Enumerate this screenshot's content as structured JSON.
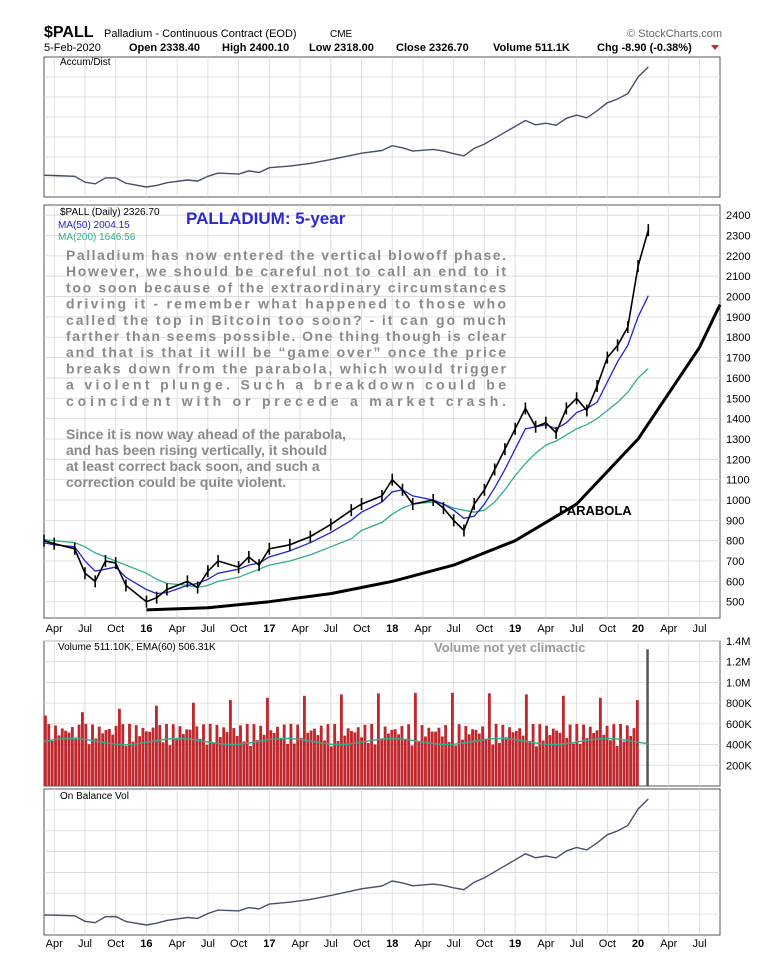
{
  "header": {
    "symbol": "$PALL",
    "description": "Palladium - Continuous Contract (EOD)",
    "exchange": "CME",
    "source": "© StockCharts.com",
    "date": "5-Feb-2020",
    "open": "Open 2338.40",
    "high": "High 2400.10",
    "low": "Low 2318.00",
    "close": "Close 2326.70",
    "volume": "Volume 511.1K",
    "chg": "Chg -8.90 (-0.38%)"
  },
  "panels": {
    "accum": "Accum/Dist",
    "price_legend": [
      "$PALL (Daily) 2326.70",
      "MA(50) 2004.15",
      "MA(200) 1646.56"
    ],
    "volume_legend": "Volume 511.10K, EMA(60) 506.31K",
    "obv": "On Balance Vol"
  },
  "annotations": {
    "title": "PALLADIUM: 5-year",
    "para1": [
      "Palladium has now entered the vertical blowoff phase.",
      "However, we should be careful not to call an end to it",
      "too soon because of the extraordinary circumstances",
      "driving it - remember what happened to those who",
      "called the top in Bitcoin too soon? - it can go much",
      "farther than seems possible. One thing though is clear",
      "and that is that it will be “game over” once the price",
      "breaks down from the parabola, which would trigger",
      "a violent plunge. Such a breakdown could be",
      "coincident with or precede a market crash."
    ],
    "para2": [
      "Since it is now way ahead of the parabola,",
      "and has been rising vertically, it should",
      "at least correct back soon, and such a",
      "correction could be quite violent."
    ],
    "parabola": "PARABOLA",
    "volume_note": "Volume not yet climactic"
  },
  "colors": {
    "price": "#000000",
    "ma50": "#2222cc",
    "ma200": "#2fae8f",
    "volume_bar": "#c0282d",
    "ema60": "#2fae8f",
    "grid": "#d8d8d8",
    "annotation_title": "#2a2ad0",
    "annotation_text": "#8a8a8a"
  },
  "chart_data": {
    "type": "line",
    "x_tick_labels": [
      "Apr",
      "Jul",
      "Oct",
      "16",
      "Apr",
      "Jul",
      "Oct",
      "17",
      "Apr",
      "Jul",
      "Oct",
      "18",
      "Apr",
      "Jul",
      "Oct",
      "19",
      "Apr",
      "Jul",
      "Oct",
      "20",
      "Apr",
      "Jul"
    ],
    "price_axis": {
      "ticks": [
        500,
        600,
        700,
        800,
        900,
        1000,
        1100,
        1200,
        1300,
        1400,
        1500,
        1600,
        1700,
        1800,
        1900,
        2000,
        2100,
        2200,
        2300,
        2400
      ],
      "ylim": [
        420,
        2450
      ]
    },
    "volume_axis": {
      "ticks": [
        200000,
        400000,
        600000,
        800000,
        1000000,
        1200000,
        1400000
      ],
      "tick_labels": [
        "200K",
        "400K",
        "600K",
        "800K",
        "1.0M",
        "1.2M",
        "1.4M"
      ],
      "ylim": [
        0,
        1400000
      ]
    },
    "date_range": [
      "2015-03",
      "2020-09"
    ],
    "price": {
      "name": "$PALL (Daily)",
      "x": [
        "2015-03",
        "2015-04",
        "2015-06",
        "2015-07",
        "2015-08",
        "2015-09",
        "2015-10",
        "2015-11",
        "2016-01",
        "2016-02",
        "2016-03",
        "2016-05",
        "2016-06",
        "2016-07",
        "2016-08",
        "2016-10",
        "2016-11",
        "2016-12",
        "2017-01",
        "2017-03",
        "2017-05",
        "2017-07",
        "2017-09",
        "2017-10",
        "2017-12",
        "2018-01",
        "2018-02",
        "2018-03",
        "2018-05",
        "2018-06",
        "2018-07",
        "2018-08",
        "2018-09",
        "2018-10",
        "2018-11",
        "2018-12",
        "2019-01",
        "2019-02",
        "2019-03",
        "2019-04",
        "2019-05",
        "2019-06",
        "2019-07",
        "2019-08",
        "2019-09",
        "2019-10",
        "2019-11",
        "2019-12",
        "2020-01",
        "2020-02"
      ],
      "y": [
        800,
        785,
        760,
        640,
        600,
        700,
        690,
        580,
        500,
        520,
        560,
        600,
        570,
        650,
        700,
        670,
        720,
        680,
        760,
        780,
        820,
        880,
        950,
        980,
        1020,
        1100,
        1050,
        980,
        1000,
        960,
        900,
        850,
        980,
        1050,
        1150,
        1250,
        1350,
        1450,
        1360,
        1380,
        1330,
        1450,
        1500,
        1440,
        1560,
        1700,
        1760,
        1850,
        2150,
        2326.7
      ]
    },
    "ma50": {
      "name": "MA(50)",
      "y": [
        790,
        780,
        770,
        700,
        650,
        660,
        670,
        620,
        560,
        540,
        545,
        580,
        590,
        610,
        640,
        660,
        680,
        690,
        720,
        750,
        790,
        840,
        900,
        940,
        990,
        1040,
        1050,
        1020,
        1000,
        980,
        950,
        910,
        920,
        980,
        1060,
        1150,
        1250,
        1350,
        1360,
        1370,
        1350,
        1380,
        1430,
        1450,
        1480,
        1580,
        1680,
        1760,
        1900,
        2004.15
      ]
    },
    "ma200": {
      "name": "MA(200)",
      "y": [
        805,
        800,
        790,
        770,
        740,
        720,
        700,
        680,
        640,
        610,
        590,
        580,
        570,
        580,
        600,
        620,
        640,
        660,
        680,
        700,
        730,
        770,
        810,
        850,
        890,
        930,
        960,
        980,
        990,
        980,
        960,
        950,
        940,
        950,
        990,
        1050,
        1120,
        1180,
        1230,
        1270,
        1290,
        1320,
        1350,
        1370,
        1400,
        1440,
        1480,
        1530,
        1600,
        1646.56
      ]
    },
    "parabola": [
      {
        "x": "2016-01",
        "y": 460
      },
      {
        "x": "2016-07",
        "y": 470
      },
      {
        "x": "2017-01",
        "y": 500
      },
      {
        "x": "2017-07",
        "y": 540
      },
      {
        "x": "2018-01",
        "y": 600
      },
      {
        "x": "2018-07",
        "y": 680
      },
      {
        "x": "2019-01",
        "y": 800
      },
      {
        "x": "2019-07",
        "y": 980
      },
      {
        "x": "2020-01",
        "y": 1300
      },
      {
        "x": "2020-07",
        "y": 1750
      },
      {
        "x": "2020-09",
        "y": 1960
      }
    ]
  }
}
